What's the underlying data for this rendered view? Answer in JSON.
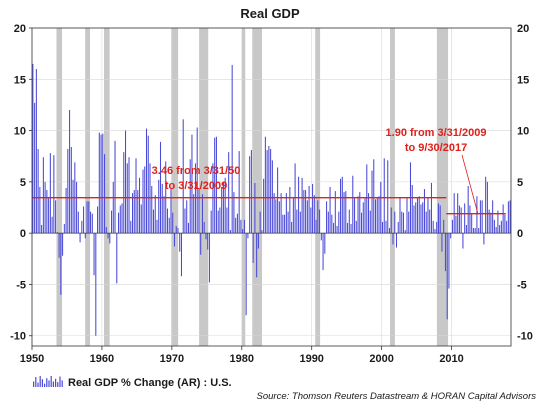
{
  "chart_data": {
    "type": "bar",
    "title": "Real GDP",
    "xlabel": "",
    "ylabel": "",
    "xlim": [
      1950,
      2018.5
    ],
    "ylim": [
      -11,
      20
    ],
    "x_ticks": [
      1950,
      1960,
      1970,
      1980,
      1990,
      2000,
      2010
    ],
    "x_tick_labels": [
      "1950",
      "1960",
      "1970",
      "1980",
      "1990",
      "2000",
      "2010"
    ],
    "y_ticks": [
      20,
      15,
      10,
      5,
      0,
      -5,
      -10
    ],
    "y_tick_labels_left": [
      "20",
      "15",
      "10",
      "5",
      "0",
      "-5",
      "-10"
    ],
    "y_tick_labels_right": [
      "20",
      "15",
      "10",
      "5",
      "0",
      "-5",
      "-10"
    ],
    "grid": true,
    "recessions": [
      {
        "start": 1953.5,
        "end": 1954.3
      },
      {
        "start": 1957.6,
        "end": 1958.3
      },
      {
        "start": 1960.3,
        "end": 1961.1
      },
      {
        "start": 1969.9,
        "end": 1970.9
      },
      {
        "start": 1973.9,
        "end": 1975.2
      },
      {
        "start": 1980.0,
        "end": 1980.5
      },
      {
        "start": 1981.5,
        "end": 1982.9
      },
      {
        "start": 1990.5,
        "end": 1991.2
      },
      {
        "start": 2001.2,
        "end": 2001.9
      },
      {
        "start": 2007.9,
        "end": 2009.5
      }
    ],
    "series": [
      {
        "name": "Real GDP % Change (AR) : U.S.",
        "color": "#4a4ad8",
        "values": [
          16.5,
          12.7,
          16.0,
          8.2,
          4.5,
          0.8,
          7.4,
          5.0,
          4.2,
          3.4,
          7.8,
          1.6,
          7.6,
          3.2,
          0.1,
          -2.4,
          -6.0,
          -2.2,
          0.9,
          4.4,
          8.2,
          12.0,
          8.4,
          5.2,
          6.9,
          5.0,
          2.1,
          -0.9,
          1.2,
          2.6,
          -0.5,
          3.1,
          3.1,
          2.1,
          1.9,
          -4.1,
          -10.0,
          2.6,
          9.8,
          9.6,
          9.7,
          7.7,
          0.6,
          -0.5,
          -1.0,
          2.2,
          5.0,
          9.0,
          -4.9,
          2.0,
          2.7,
          2.9,
          7.9,
          10.0,
          6.8,
          7.4,
          1.2,
          3.9,
          4.2,
          7.3,
          4.2,
          5.4,
          2.8,
          6.2,
          6.5,
          10.2,
          9.5,
          6.8,
          4.6,
          2.3,
          3.7,
          1.3,
          5.2,
          8.9,
          4.8,
          3.6,
          7.0,
          2.4,
          1.5,
          4.3,
          2.0,
          -1.3,
          0.7,
          0.5,
          -1.8,
          -4.2,
          11.1,
          2.4,
          3.2,
          1.0,
          7.2,
          9.6,
          3.8,
          6.8,
          10.3,
          4.4,
          -2.1,
          3.8,
          1.1,
          -0.6,
          -1.6,
          -4.8,
          2.2,
          6.8,
          9.3,
          9.4,
          2.2,
          2.5,
          4.5,
          5.0,
          5.4,
          2.5,
          7.9,
          0.3,
          16.4,
          4.0,
          1.5,
          1.9,
          8.0,
          1.3,
          0.4,
          1.3,
          -8.0,
          -0.5,
          7.5,
          8.1,
          -2.9,
          4.9,
          -4.3,
          -1.5,
          2.1,
          0.3,
          5.3,
          9.4,
          8.1,
          8.5,
          8.2,
          7.1,
          3.9,
          3.3,
          6.4,
          3.1,
          3.9,
          1.8,
          1.8,
          3.9,
          2.1,
          4.5,
          1.1,
          3.5,
          6.8,
          2.3,
          5.5,
          2.1,
          5.4,
          4.2,
          4.2,
          3.2,
          4.6,
          2.5,
          4.8,
          3.7,
          1.3,
          3.2,
          2.3,
          -0.7,
          -3.6,
          -2.0,
          3.1,
          2.1,
          4.5,
          1.8,
          1.0,
          4.1,
          0.7,
          2.1,
          5.3,
          5.5,
          4.0,
          4.1,
          1.0,
          2.3,
          0.9,
          5.6,
          3.4,
          1.2,
          3.6,
          4.0,
          2.0,
          3.0,
          3.4,
          6.7,
          3.9,
          2.2,
          6.1,
          7.2,
          3.3,
          3.5,
          3.6,
          5.0,
          1.1,
          7.3,
          1.2,
          7.1,
          0.5,
          2.5,
          -1.1,
          2.1,
          -1.4,
          1.1,
          3.5,
          2.1,
          2.0,
          0.3,
          3.5,
          2.1,
          6.9,
          4.7,
          2.7,
          3.0,
          3.5,
          3.6,
          2.8,
          3.0,
          4.3,
          2.1,
          3.4,
          2.3,
          4.9,
          1.2,
          0.4,
          1.1,
          2.9,
          2.7,
          -1.8,
          1.3,
          -3.7,
          -8.4,
          -5.4,
          -0.5,
          1.3,
          3.9,
          1.7,
          3.9,
          2.7,
          2.5,
          -1.5,
          2.9,
          0.8,
          4.6,
          2.7,
          1.9,
          0.5,
          0.5,
          3.6,
          0.5,
          3.2,
          3.2,
          -1.1,
          5.5,
          5.0,
          2.3,
          2.0,
          3.2,
          1.3,
          0.6,
          2.2,
          0.8,
          1.2,
          2.8,
          1.8,
          1.2,
          3.1,
          3.2
        ]
      }
    ],
    "reference_lines": [
      {
        "label": "3.46 from 3/31/50 to 3/31/2009",
        "value": 3.46,
        "x_start": 1950,
        "x_end": 2009.25,
        "color": "#e0201a"
      },
      {
        "label": "1.90 from 3/31/2009 to 9/30/2017",
        "value": 1.9,
        "x_start": 2009.25,
        "x_end": 2017.75,
        "color": "#e0201a"
      }
    ],
    "annotations": [
      {
        "line1": "3.46 from 3/31/50",
        "line2": "to 3/31/2009"
      },
      {
        "line1": "1.90 from 3/31/2009",
        "line2": "to 9/30/2017"
      }
    ],
    "legend": {
      "label": "Real GDP % Change (AR) : U.S.",
      "placement": "bottom-left"
    },
    "source": "Source: Thomson Reuters Datastream & HORAN Capital Advisors",
    "colors": {
      "bar": "#4a4ad8",
      "recession": "#c8c8c8",
      "reference": "#e0201a",
      "grid": "#d8d8d8",
      "axis": "#333333"
    }
  }
}
